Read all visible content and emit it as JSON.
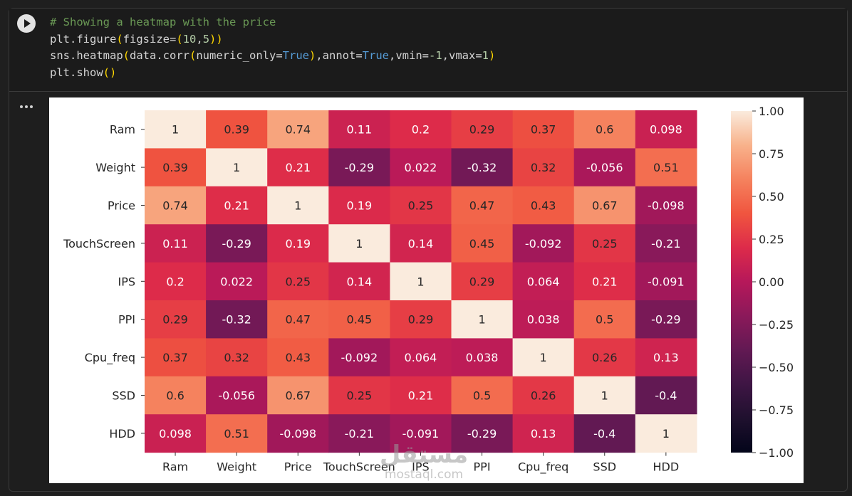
{
  "code": {
    "comment": "# Showing a heatmap with the price",
    "line2": {
      "fn": "plt.figure",
      "kw": "figsize=",
      "a": "10",
      "b": "5"
    },
    "line3": {
      "fn": "sns.heatmap",
      "call": "data.corr",
      "arg": "numeric_only=",
      "true1": "True",
      "annot": ",annot=",
      "true2": "True",
      "vmin": ",vmin=",
      "vmin_val": "-1",
      "vmax": ",vmax=",
      "vmax_val": "1"
    },
    "line4": {
      "fn": "plt.show"
    }
  },
  "run_button": {
    "icon": "play-icon"
  },
  "output_menu": {
    "icon": "more-horiz-icon"
  },
  "watermark": {
    "arabic": "مستقل",
    "latin": "mostaql.com"
  },
  "chart_data": {
    "type": "heatmap",
    "title": "",
    "labels": [
      "Ram",
      "Weight",
      "Price",
      "TouchScreen",
      "IPS",
      "PPI",
      "Cpu_freq",
      "SSD",
      "HDD"
    ],
    "matrix": [
      [
        1,
        0.39,
        0.74,
        0.11,
        0.2,
        0.29,
        0.37,
        0.6,
        0.098
      ],
      [
        0.39,
        1,
        0.21,
        -0.29,
        0.022,
        -0.32,
        0.32,
        -0.056,
        0.51
      ],
      [
        0.74,
        0.21,
        1,
        0.19,
        0.25,
        0.47,
        0.43,
        0.67,
        -0.098
      ],
      [
        0.11,
        -0.29,
        0.19,
        1,
        0.14,
        0.45,
        -0.092,
        0.25,
        -0.21
      ],
      [
        0.2,
        0.022,
        0.25,
        0.14,
        1,
        0.29,
        0.064,
        0.21,
        -0.091
      ],
      [
        0.29,
        -0.32,
        0.47,
        0.45,
        0.29,
        1,
        0.038,
        0.5,
        -0.29
      ],
      [
        0.37,
        0.32,
        0.43,
        -0.092,
        0.064,
        0.038,
        1,
        0.26,
        0.13
      ],
      [
        0.6,
        -0.056,
        0.67,
        0.25,
        0.21,
        0.5,
        0.26,
        1,
        -0.4
      ],
      [
        0.098,
        0.51,
        -0.098,
        -0.21,
        -0.091,
        -0.29,
        0.13,
        -0.4,
        1
      ]
    ],
    "vmin": -1,
    "vmax": 1,
    "colormap": "rocket",
    "colorbar_ticks": [
      "1.00",
      "0.75",
      "0.50",
      "0.25",
      "0.00",
      "−0.25",
      "−0.50",
      "−0.75",
      "−1.00"
    ],
    "colorbar_values": [
      1.0,
      0.75,
      0.5,
      0.25,
      0.0,
      -0.25,
      -0.5,
      -0.75,
      -1.0
    ],
    "annot": true
  }
}
